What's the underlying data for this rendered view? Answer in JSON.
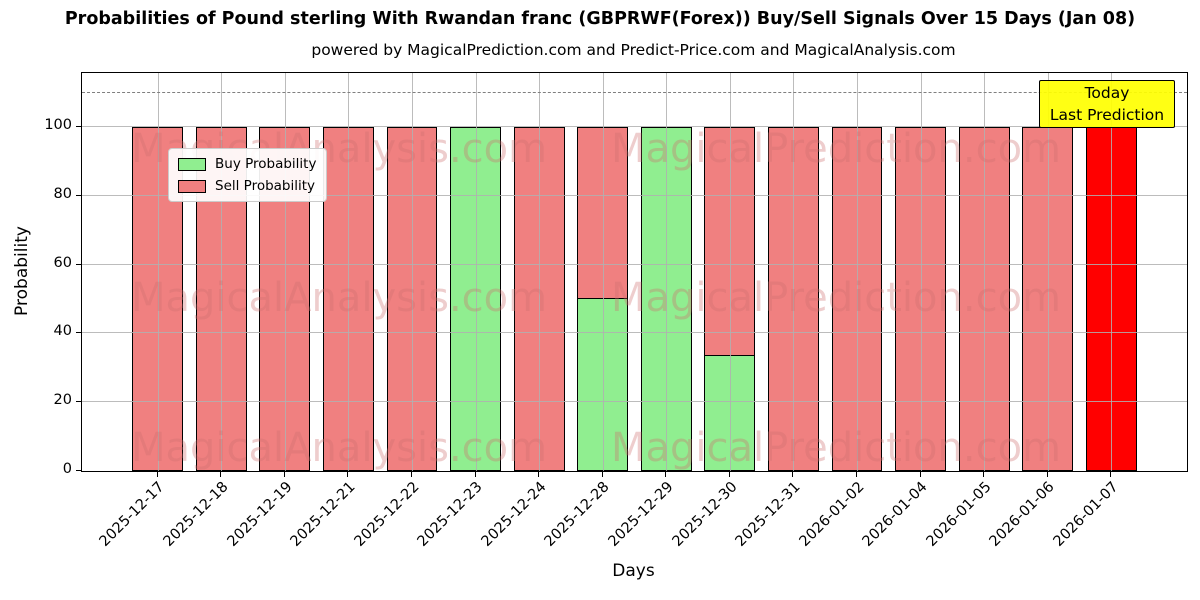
{
  "title": "Probabilities of Pound sterling With Rwandan franc (GBPRWF(Forex)) Buy/Sell Signals Over 15 Days (Jan 08)",
  "subtitle": "powered by MagicalPrediction.com and Predict-Price.com and MagicalAnalysis.com",
  "watermarks": {
    "left": "MagicalAnalysis.com",
    "right": "MagicalPrediction.com"
  },
  "legend": {
    "items": [
      {
        "label": "Buy Probability",
        "color": "#90ee90"
      },
      {
        "label": "Sell Probability",
        "color": "#f08080"
      }
    ]
  },
  "annotation": {
    "line1": "Today",
    "line2": "Last Prediction",
    "bg_color": "#ffff00"
  },
  "chart_data": {
    "type": "bar",
    "stacked": true,
    "title": "Probabilities of Pound sterling With Rwandan franc (GBPRWF(Forex)) Buy/Sell Signals Over 15 Days (Jan 08)",
    "xlabel": "Days",
    "ylabel": "Probability",
    "categories": [
      "2025-12-17",
      "2025-12-18",
      "2025-12-19",
      "2025-12-21",
      "2025-12-22",
      "2025-12-23",
      "2025-12-24",
      "2025-12-28",
      "2025-12-29",
      "2025-12-30",
      "2025-12-31",
      "2026-01-02",
      "2026-01-04",
      "2026-01-05",
      "2026-01-06",
      "2026-01-07"
    ],
    "series": [
      {
        "name": "Buy Probability",
        "color": "#90ee90",
        "values": [
          0,
          0,
          0,
          0,
          0,
          100,
          0,
          50,
          100,
          33.33,
          0,
          0,
          0,
          0,
          0,
          0
        ]
      },
      {
        "name": "Sell Probability",
        "color": "#f08080",
        "values": [
          100,
          100,
          100,
          100,
          100,
          0,
          100,
          50,
          0,
          66.67,
          100,
          100,
          100,
          100,
          100,
          100
        ]
      }
    ],
    "today_bar": {
      "category": "2026-01-07",
      "index": 15,
      "color": "#ff0000"
    },
    "yticks": [
      0,
      20,
      40,
      60,
      80,
      100
    ],
    "ylim": [
      0,
      115.7
    ],
    "dashed_line_y": 110,
    "grid": true,
    "grid_color": "#b0b0b0",
    "dashed_line_color": "#7f7f7f",
    "bar_edge_color": "#000000",
    "legend_position": "upper-left"
  }
}
